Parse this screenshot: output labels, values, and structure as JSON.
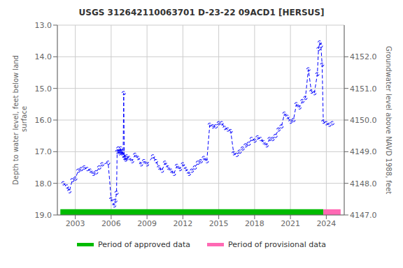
{
  "chart_data": {
    "type": "line",
    "title": "USGS 312642110063701 D-23-22 09ACD1 [HERSUS]",
    "ylabel": "Depth to water level, feet below land\n surface",
    "y2label": "Groundwater level above NAVD 1988, feet",
    "ylim": [
      19.0,
      13.0
    ],
    "yticks": [
      {
        "value": 13.0,
        "label": "13.0"
      },
      {
        "value": 14.0,
        "label": "14.0"
      },
      {
        "value": 15.0,
        "label": "15.0"
      },
      {
        "value": 16.0,
        "label": "16.0"
      },
      {
        "value": 17.0,
        "label": "17.0"
      },
      {
        "value": 18.0,
        "label": "18.0"
      },
      {
        "value": 19.0,
        "label": "19.0"
      }
    ],
    "y2lim": [
      4147.0,
      4153.0
    ],
    "y2ticks": [
      {
        "value": 4147.0,
        "label": "4147.0"
      },
      {
        "value": 4148.0,
        "label": "4148.0"
      },
      {
        "value": 4149.0,
        "label": "4149.0"
      },
      {
        "value": 4150.0,
        "label": "4150.0"
      },
      {
        "value": 4151.0,
        "label": "4151.0"
      },
      {
        "value": 4152.0,
        "label": "4152.0"
      }
    ],
    "xlim": [
      2001.5,
      2025.5
    ],
    "xticks": [
      2003,
      2006,
      2009,
      2012,
      2015,
      2018,
      2021,
      2024
    ],
    "grid": true,
    "legend": "bottom",
    "x": [
      2002.0,
      2002.3,
      2002.5,
      2002.75,
      2003.0,
      2003.25,
      2003.5,
      2003.75,
      2004.0,
      2004.25,
      2004.5,
      2004.75,
      2005.0,
      2005.25,
      2005.75,
      2006.0,
      2006.25,
      2006.35,
      2006.45,
      2006.5,
      2006.6,
      2006.65,
      2006.7,
      2006.75,
      2006.8,
      2006.85,
      2006.9,
      2006.95,
      2007.0,
      2007.05,
      2007.1,
      2007.15,
      2007.2,
      2007.25,
      2007.3,
      2007.5,
      2007.75,
      2008.0,
      2008.25,
      2008.5,
      2008.75,
      2009.0,
      2009.5,
      2009.75,
      2010.0,
      2010.25,
      2010.5,
      2010.75,
      2011.0,
      2011.25,
      2011.5,
      2011.75,
      2012.0,
      2012.25,
      2012.5,
      2012.75,
      2013.0,
      2013.25,
      2013.5,
      2013.75,
      2014.0,
      2014.25,
      2014.5,
      2014.75,
      2015.0,
      2015.25,
      2015.5,
      2015.75,
      2016.0,
      2016.25,
      2016.5,
      2016.75,
      2017.0,
      2017.25,
      2017.5,
      2017.75,
      2018.0,
      2018.25,
      2018.5,
      2018.75,
      2019.0,
      2019.25,
      2019.5,
      2019.75,
      2020.0,
      2020.25,
      2020.5,
      2020.75,
      2021.0,
      2021.25,
      2021.5,
      2021.75,
      2022.0,
      2022.25,
      2022.5,
      2022.75,
      2023.0,
      2023.25,
      2023.35,
      2023.45,
      2023.55,
      2023.65,
      2023.75,
      2024.0,
      2024.25,
      2024.5
    ],
    "series": [
      {
        "color": "#0000FF",
        "marker": "circle",
        "line_style": "dashed",
        "values": [
          18.0,
          18.1,
          18.25,
          17.9,
          17.85,
          17.6,
          17.55,
          17.5,
          17.55,
          17.6,
          17.7,
          17.65,
          17.5,
          17.4,
          17.35,
          18.5,
          18.7,
          18.55,
          18.3,
          17.0,
          16.9,
          17.0,
          17.05,
          17.0,
          16.9,
          17.0,
          17.05,
          17.0,
          17.1,
          15.15,
          17.2,
          17.2,
          17.25,
          17.2,
          17.15,
          17.2,
          17.3,
          17.1,
          17.2,
          17.4,
          17.3,
          17.4,
          17.15,
          17.3,
          17.5,
          17.6,
          17.35,
          17.5,
          17.6,
          17.7,
          17.45,
          17.55,
          17.4,
          17.55,
          17.7,
          17.6,
          17.5,
          17.35,
          17.3,
          17.2,
          17.3,
          16.15,
          16.2,
          16.2,
          16.1,
          16.1,
          16.25,
          16.3,
          16.35,
          17.05,
          17.1,
          17.0,
          16.9,
          16.8,
          16.75,
          16.6,
          16.65,
          16.55,
          16.6,
          16.7,
          16.8,
          16.6,
          16.6,
          16.5,
          16.3,
          16.2,
          15.8,
          15.9,
          16.05,
          16.0,
          15.5,
          15.6,
          15.4,
          15.3,
          14.4,
          15.1,
          15.15,
          14.55,
          13.75,
          13.55,
          13.65,
          14.25,
          16.05,
          16.1,
          16.15,
          16.1
        ]
      }
    ],
    "periods": [
      {
        "name": "Period of approved data",
        "color": "#00BB00",
        "start": 2001.75,
        "end": 2023.75
      },
      {
        "name": "Period of provisional data",
        "color": "#FF69B4",
        "start": 2023.75,
        "end": 2025.2
      }
    ]
  }
}
